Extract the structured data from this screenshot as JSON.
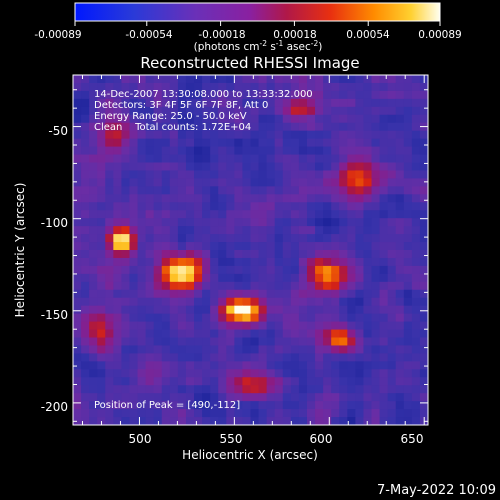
{
  "chart_data": {
    "type": "heatmap",
    "title": "Reconstructed RHESSI Image",
    "xlabel": "Heliocentric X (arcsec)",
    "ylabel": "Heliocentric Y (arcsec)",
    "xlim": [
      465,
      652
    ],
    "ylim": [
      -212,
      -22
    ],
    "x_ticks": [
      500,
      550,
      600,
      650
    ],
    "y_ticks": [
      -50,
      -100,
      -150,
      -200
    ],
    "colorbar": {
      "colormap": "rhessi-hot",
      "range": [
        -0.00089,
        0.00089
      ],
      "ticks": [
        "-0.00089",
        "-0.00054",
        "-0.00018",
        "0.00018",
        "0.00054",
        "0.00089"
      ],
      "units_text": "(photons cm",
      "units_sup1": "-2",
      "units_mid1": " s",
      "units_sup2": "-1",
      "units_mid2": " asec",
      "units_sup3": "-2",
      "units_end": ")"
    },
    "annotations": [
      "14-Dec-2007 13:30:08.000 to 13:33:32.000",
      "Detectors: 3F 4F 5F 6F 7F 8F, Att 0",
      "Energy Range: 25.0 - 50.0 keV",
      "Clean    Total counts: 1.72E+04"
    ],
    "peak_label": "Position of Peak = [490,-112]",
    "peak": [
      490,
      -112
    ],
    "sources": [
      {
        "x": 490,
        "y": -112,
        "amp": 1.0,
        "sx": 5,
        "sy": 5
      },
      {
        "x": 522,
        "y": -130,
        "amp": 0.95,
        "sx": 8,
        "sy": 7
      },
      {
        "x": 553,
        "y": -150,
        "amp": 0.9,
        "sx": 8,
        "sy": 5
      },
      {
        "x": 605,
        "y": -165,
        "amp": 0.7,
        "sx": 6,
        "sy": 5
      },
      {
        "x": 600,
        "y": -130,
        "amp": 0.6,
        "sx": 9,
        "sy": 8
      },
      {
        "x": 615,
        "y": -80,
        "amp": 0.5,
        "sx": 7,
        "sy": 9
      },
      {
        "x": 487,
        "y": -55,
        "amp": 0.5,
        "sx": 7,
        "sy": 7
      },
      {
        "x": 585,
        "y": -40,
        "amp": 0.45,
        "sx": 8,
        "sy": 5
      },
      {
        "x": 480,
        "y": -160,
        "amp": 0.45,
        "sx": 6,
        "sy": 8
      },
      {
        "x": 560,
        "y": -190,
        "amp": 0.5,
        "sx": 8,
        "sy": 6
      }
    ]
  },
  "footer": {
    "date": "7-May-2022 10:09"
  }
}
